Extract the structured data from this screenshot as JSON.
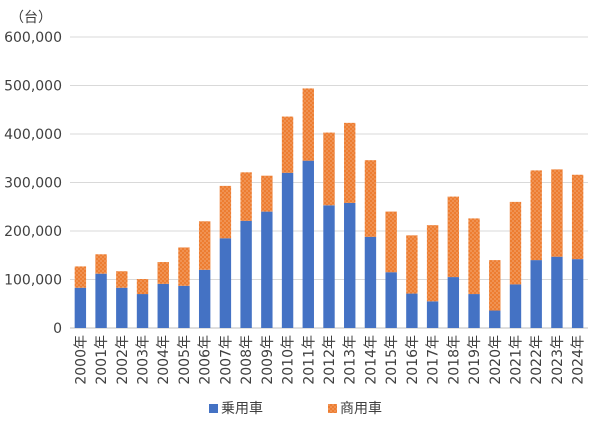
{
  "chart_data": {
    "type": "bar",
    "stacked": true,
    "unit_label": "（台）",
    "categories": [
      "2000年",
      "2001年",
      "2002年",
      "2003年",
      "2004年",
      "2005年",
      "2006年",
      "2007年",
      "2008年",
      "2009年",
      "2010年",
      "2011年",
      "2012年",
      "2013年",
      "2014年",
      "2015年",
      "2016年",
      "2017年",
      "2018年",
      "2019年",
      "2020年",
      "2021年",
      "2022年",
      "2023年",
      "2024年"
    ],
    "series": [
      {
        "name": "乗用車",
        "color": "#4472c4",
        "pattern": "solid",
        "values": [
          83000,
          112000,
          83000,
          70000,
          91000,
          87000,
          120000,
          185000,
          221000,
          240000,
          320000,
          345000,
          253000,
          258000,
          188000,
          115000,
          71000,
          55000,
          105000,
          70000,
          36000,
          90000,
          140000,
          147000,
          142000
        ]
      },
      {
        "name": "商用車",
        "color": "#ed7d31",
        "pattern": "dotted",
        "values": [
          44000,
          40000,
          34000,
          31000,
          45000,
          79000,
          100000,
          108000,
          100000,
          74000,
          116000,
          149000,
          150000,
          165000,
          158000,
          125000,
          120000,
          157000,
          166000,
          156000,
          104000,
          170000,
          185000,
          180000,
          174000
        ]
      }
    ],
    "ylim": [
      0,
      600000
    ],
    "yticks": [
      0,
      100000,
      200000,
      300000,
      400000,
      500000,
      600000
    ],
    "ytick_labels": [
      "0",
      "100,000",
      "200,000",
      "300,000",
      "400,000",
      "500,000",
      "600,000"
    ],
    "grid": true,
    "legend_position": "bottom"
  }
}
